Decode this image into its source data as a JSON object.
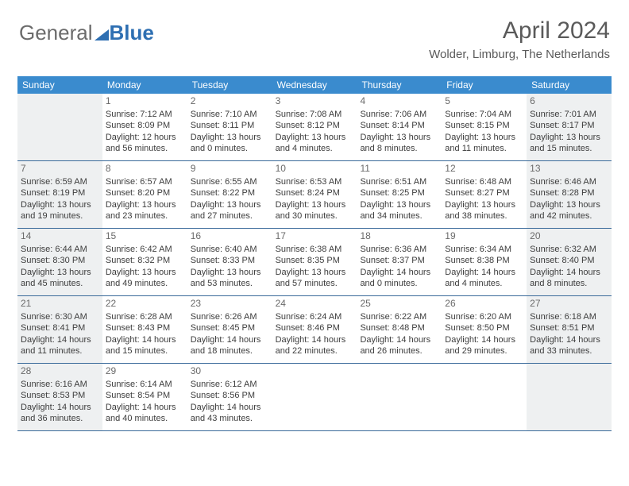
{
  "brand": {
    "part1": "General",
    "part2": "Blue"
  },
  "title": "April 2024",
  "location": "Wolder, Limburg, The Netherlands",
  "colors": {
    "header_bg": "#3a8bce",
    "header_text": "#ffffff",
    "week_border": "#3a6a9a",
    "shade_bg": "#eef0f1",
    "text": "#3d3d3d",
    "brand_blue": "#2e6fb2",
    "brand_gray": "#6b6b6b"
  },
  "day_headers": [
    "Sunday",
    "Monday",
    "Tuesday",
    "Wednesday",
    "Thursday",
    "Friday",
    "Saturday"
  ],
  "weeks": [
    [
      {
        "shade": true
      },
      {
        "num": "1",
        "sr": "Sunrise: 7:12 AM",
        "ss": "Sunset: 8:09 PM",
        "d1": "Daylight: 12 hours",
        "d2": "and 56 minutes."
      },
      {
        "num": "2",
        "sr": "Sunrise: 7:10 AM",
        "ss": "Sunset: 8:11 PM",
        "d1": "Daylight: 13 hours",
        "d2": "and 0 minutes."
      },
      {
        "num": "3",
        "sr": "Sunrise: 7:08 AM",
        "ss": "Sunset: 8:12 PM",
        "d1": "Daylight: 13 hours",
        "d2": "and 4 minutes."
      },
      {
        "num": "4",
        "sr": "Sunrise: 7:06 AM",
        "ss": "Sunset: 8:14 PM",
        "d1": "Daylight: 13 hours",
        "d2": "and 8 minutes."
      },
      {
        "num": "5",
        "sr": "Sunrise: 7:04 AM",
        "ss": "Sunset: 8:15 PM",
        "d1": "Daylight: 13 hours",
        "d2": "and 11 minutes."
      },
      {
        "num": "6",
        "sr": "Sunrise: 7:01 AM",
        "ss": "Sunset: 8:17 PM",
        "d1": "Daylight: 13 hours",
        "d2": "and 15 minutes.",
        "shade": true
      }
    ],
    [
      {
        "num": "7",
        "sr": "Sunrise: 6:59 AM",
        "ss": "Sunset: 8:19 PM",
        "d1": "Daylight: 13 hours",
        "d2": "and 19 minutes.",
        "shade": true
      },
      {
        "num": "8",
        "sr": "Sunrise: 6:57 AM",
        "ss": "Sunset: 8:20 PM",
        "d1": "Daylight: 13 hours",
        "d2": "and 23 minutes."
      },
      {
        "num": "9",
        "sr": "Sunrise: 6:55 AM",
        "ss": "Sunset: 8:22 PM",
        "d1": "Daylight: 13 hours",
        "d2": "and 27 minutes."
      },
      {
        "num": "10",
        "sr": "Sunrise: 6:53 AM",
        "ss": "Sunset: 8:24 PM",
        "d1": "Daylight: 13 hours",
        "d2": "and 30 minutes."
      },
      {
        "num": "11",
        "sr": "Sunrise: 6:51 AM",
        "ss": "Sunset: 8:25 PM",
        "d1": "Daylight: 13 hours",
        "d2": "and 34 minutes."
      },
      {
        "num": "12",
        "sr": "Sunrise: 6:48 AM",
        "ss": "Sunset: 8:27 PM",
        "d1": "Daylight: 13 hours",
        "d2": "and 38 minutes."
      },
      {
        "num": "13",
        "sr": "Sunrise: 6:46 AM",
        "ss": "Sunset: 8:28 PM",
        "d1": "Daylight: 13 hours",
        "d2": "and 42 minutes.",
        "shade": true
      }
    ],
    [
      {
        "num": "14",
        "sr": "Sunrise: 6:44 AM",
        "ss": "Sunset: 8:30 PM",
        "d1": "Daylight: 13 hours",
        "d2": "and 45 minutes.",
        "shade": true
      },
      {
        "num": "15",
        "sr": "Sunrise: 6:42 AM",
        "ss": "Sunset: 8:32 PM",
        "d1": "Daylight: 13 hours",
        "d2": "and 49 minutes."
      },
      {
        "num": "16",
        "sr": "Sunrise: 6:40 AM",
        "ss": "Sunset: 8:33 PM",
        "d1": "Daylight: 13 hours",
        "d2": "and 53 minutes."
      },
      {
        "num": "17",
        "sr": "Sunrise: 6:38 AM",
        "ss": "Sunset: 8:35 PM",
        "d1": "Daylight: 13 hours",
        "d2": "and 57 minutes."
      },
      {
        "num": "18",
        "sr": "Sunrise: 6:36 AM",
        "ss": "Sunset: 8:37 PM",
        "d1": "Daylight: 14 hours",
        "d2": "and 0 minutes."
      },
      {
        "num": "19",
        "sr": "Sunrise: 6:34 AM",
        "ss": "Sunset: 8:38 PM",
        "d1": "Daylight: 14 hours",
        "d2": "and 4 minutes."
      },
      {
        "num": "20",
        "sr": "Sunrise: 6:32 AM",
        "ss": "Sunset: 8:40 PM",
        "d1": "Daylight: 14 hours",
        "d2": "and 8 minutes.",
        "shade": true
      }
    ],
    [
      {
        "num": "21",
        "sr": "Sunrise: 6:30 AM",
        "ss": "Sunset: 8:41 PM",
        "d1": "Daylight: 14 hours",
        "d2": "and 11 minutes.",
        "shade": true
      },
      {
        "num": "22",
        "sr": "Sunrise: 6:28 AM",
        "ss": "Sunset: 8:43 PM",
        "d1": "Daylight: 14 hours",
        "d2": "and 15 minutes."
      },
      {
        "num": "23",
        "sr": "Sunrise: 6:26 AM",
        "ss": "Sunset: 8:45 PM",
        "d1": "Daylight: 14 hours",
        "d2": "and 18 minutes."
      },
      {
        "num": "24",
        "sr": "Sunrise: 6:24 AM",
        "ss": "Sunset: 8:46 PM",
        "d1": "Daylight: 14 hours",
        "d2": "and 22 minutes."
      },
      {
        "num": "25",
        "sr": "Sunrise: 6:22 AM",
        "ss": "Sunset: 8:48 PM",
        "d1": "Daylight: 14 hours",
        "d2": "and 26 minutes."
      },
      {
        "num": "26",
        "sr": "Sunrise: 6:20 AM",
        "ss": "Sunset: 8:50 PM",
        "d1": "Daylight: 14 hours",
        "d2": "and 29 minutes."
      },
      {
        "num": "27",
        "sr": "Sunrise: 6:18 AM",
        "ss": "Sunset: 8:51 PM",
        "d1": "Daylight: 14 hours",
        "d2": "and 33 minutes.",
        "shade": true
      }
    ],
    [
      {
        "num": "28",
        "sr": "Sunrise: 6:16 AM",
        "ss": "Sunset: 8:53 PM",
        "d1": "Daylight: 14 hours",
        "d2": "and 36 minutes.",
        "shade": true
      },
      {
        "num": "29",
        "sr": "Sunrise: 6:14 AM",
        "ss": "Sunset: 8:54 PM",
        "d1": "Daylight: 14 hours",
        "d2": "and 40 minutes."
      },
      {
        "num": "30",
        "sr": "Sunrise: 6:12 AM",
        "ss": "Sunset: 8:56 PM",
        "d1": "Daylight: 14 hours",
        "d2": "and 43 minutes."
      },
      {},
      {},
      {},
      {
        "shade": true
      }
    ]
  ]
}
